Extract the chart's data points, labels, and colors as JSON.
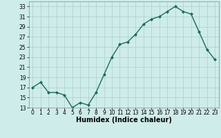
{
  "title": "",
  "xlabel": "Humidex (Indice chaleur)",
  "x": [
    0,
    1,
    2,
    3,
    4,
    5,
    6,
    7,
    8,
    9,
    10,
    11,
    12,
    13,
    14,
    15,
    16,
    17,
    18,
    19,
    20,
    21,
    22,
    23
  ],
  "y": [
    17,
    18,
    16,
    16,
    15.5,
    13,
    14,
    13.5,
    16,
    19.5,
    23,
    25.5,
    26,
    27.5,
    29.5,
    30.5,
    31,
    32,
    33,
    32,
    31.5,
    28,
    24.5,
    22.5
  ],
  "line_color": "#1a6b5a",
  "marker": "D",
  "marker_size": 2.0,
  "bg_color": "#ceecea",
  "grid_color": "#aacfcc",
  "ylim": [
    13,
    34
  ],
  "yticks": [
    13,
    15,
    17,
    19,
    21,
    23,
    25,
    27,
    29,
    31,
    33
  ],
  "xlim": [
    -0.5,
    23.5
  ],
  "xticks": [
    0,
    1,
    2,
    3,
    4,
    5,
    6,
    7,
    8,
    9,
    10,
    11,
    12,
    13,
    14,
    15,
    16,
    17,
    18,
    19,
    20,
    21,
    22,
    23
  ],
  "tick_fontsize": 5.5,
  "xlabel_fontsize": 7,
  "linewidth": 1.0
}
